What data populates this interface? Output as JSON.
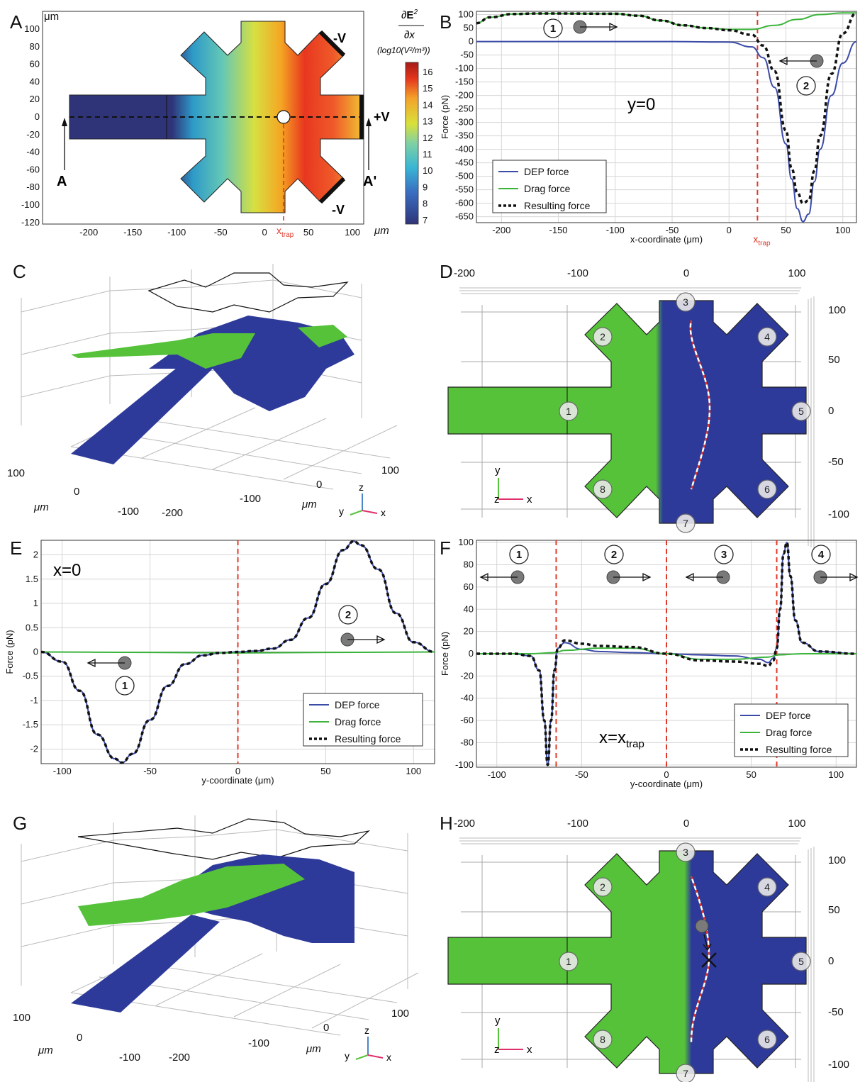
{
  "panel_letters": [
    "A",
    "B",
    "C",
    "D",
    "E",
    "F",
    "G",
    "H"
  ],
  "colors": {
    "dep": "#3b4ba8",
    "drag": "#3cb43c",
    "result": "#111111",
    "trap": "#e03a2a",
    "green_surface": "#56c23a",
    "blue_surface": "#2e3a9a"
  },
  "panelA": {
    "y_unit": "μm",
    "x_unit": "μm",
    "x_ticks": [
      "-200",
      "-150",
      "-100",
      "-50",
      "0",
      "50",
      "100"
    ],
    "y_ticks": [
      "100",
      "80",
      "60",
      "40",
      "20",
      "0",
      "-20",
      "-40",
      "-60",
      "-80",
      "-100",
      "-120"
    ],
    "label_A": "A",
    "label_A2": "A'",
    "electrode_top": "-V",
    "electrode_right": "+V",
    "electrode_bottom": "-V",
    "xtrap": "x",
    "xtrap_sub": "trap",
    "colorbar_title_unit": "(log10(V²/m³))",
    "colorbar_ticks": [
      "16",
      "15",
      "14",
      "13",
      "12",
      "11",
      "10",
      "9",
      "8",
      "7"
    ]
  },
  "chart_data": [
    {
      "panel": "B",
      "type": "line",
      "xlabel": "x-coordinate (μm)",
      "ylabel": "Force (pN)",
      "xlim": [
        -222,
        112
      ],
      "ylim": [
        -672,
        112
      ],
      "x_ticks": [
        "-200",
        "-150",
        "-100",
        "-50",
        "0",
        "50",
        "100"
      ],
      "y_ticks": [
        "100",
        "50",
        "0",
        "-50",
        "-100",
        "-150",
        "-200",
        "-250",
        "-300",
        "-350",
        "-400",
        "-450",
        "-500",
        "-550",
        "-600",
        "-650"
      ],
      "annotation": "y=0",
      "xtrap": "x",
      "xtrap_sub": "trap",
      "trap_x": 25,
      "legend": [
        "DEP force",
        "Drag force",
        "Resulting force"
      ],
      "series": [
        {
          "name": "DEP force",
          "x": [
            -222,
            -150,
            -50,
            0,
            20,
            30,
            40,
            50,
            55,
            60,
            65,
            70,
            75,
            80,
            90,
            100,
            112
          ],
          "y": [
            0,
            0,
            0,
            -2,
            -20,
            -60,
            -170,
            -380,
            -510,
            -620,
            -668,
            -640,
            -520,
            -400,
            -200,
            -80,
            0
          ]
        },
        {
          "name": "Drag force",
          "x": [
            -222,
            -210,
            -190,
            -170,
            -150,
            -100,
            -80,
            -60,
            -40,
            -20,
            0,
            20,
            40,
            60,
            80,
            100,
            112
          ],
          "y": [
            68,
            90,
            102,
            104,
            104,
            103,
            96,
            78,
            60,
            50,
            45,
            45,
            60,
            82,
            100,
            106,
            106
          ]
        },
        {
          "name": "Resulting force",
          "x": [
            -222,
            -210,
            -190,
            -170,
            -150,
            -100,
            -80,
            -60,
            -40,
            -20,
            0,
            20,
            30,
            40,
            50,
            55,
            60,
            65,
            70,
            75,
            80,
            90,
            100,
            112
          ],
          "y": [
            68,
            90,
            102,
            104,
            104,
            103,
            96,
            78,
            60,
            50,
            42,
            25,
            -15,
            -110,
            -330,
            -470,
            -560,
            -600,
            -590,
            -480,
            -350,
            -120,
            30,
            106
          ]
        }
      ]
    },
    {
      "panel": "E",
      "type": "line",
      "xlabel": "y-coordinate (μm)",
      "ylabel": "Force (pN)",
      "xlim": [
        -112,
        112
      ],
      "ylim": [
        -2.3,
        2.3
      ],
      "x_ticks": [
        "-100",
        "-50",
        "0",
        "50",
        "100"
      ],
      "y_ticks": [
        "2",
        "1.5",
        "1",
        "0.5",
        "0",
        "-0.5",
        "-1",
        "-1.5",
        "-2"
      ],
      "annotation": "x=0",
      "trap_x": 0,
      "legend": [
        "DEP force",
        "Drag force",
        "Resulting force"
      ],
      "series": [
        {
          "name": "DEP force",
          "x": [
            -112,
            -100,
            -90,
            -80,
            -70,
            -66,
            -60,
            -50,
            -40,
            -30,
            -20,
            -10,
            0,
            10,
            20,
            30,
            40,
            50,
            60,
            66,
            70,
            80,
            90,
            100,
            112
          ],
          "y": [
            0,
            -0.2,
            -0.8,
            -1.7,
            -2.2,
            -2.28,
            -2.1,
            -1.4,
            -0.7,
            -0.25,
            -0.07,
            -0.02,
            0,
            0.02,
            0.07,
            0.25,
            0.7,
            1.4,
            2.1,
            2.28,
            2.2,
            1.7,
            0.8,
            0.2,
            0
          ]
        },
        {
          "name": "Drag force",
          "x": [
            -112,
            -50,
            0,
            50,
            112
          ],
          "y": [
            0,
            -0.01,
            -0.02,
            -0.01,
            0
          ]
        },
        {
          "name": "Resulting force",
          "x": [
            -112,
            -100,
            -90,
            -80,
            -70,
            -66,
            -60,
            -50,
            -40,
            -30,
            -20,
            -10,
            0,
            10,
            20,
            30,
            40,
            50,
            60,
            66,
            70,
            80,
            90,
            100,
            112
          ],
          "y": [
            0,
            -0.2,
            -0.8,
            -1.7,
            -2.2,
            -2.28,
            -2.1,
            -1.4,
            -0.7,
            -0.25,
            -0.07,
            -0.02,
            0,
            0.02,
            0.07,
            0.25,
            0.7,
            1.4,
            2.1,
            2.28,
            2.2,
            1.7,
            0.8,
            0.2,
            0
          ]
        }
      ]
    },
    {
      "panel": "F",
      "type": "line",
      "xlabel": "y-coordinate (μm)",
      "ylabel": "Force (pN)",
      "xlim": [
        -112,
        112
      ],
      "ylim": [
        -102,
        102
      ],
      "x_ticks": [
        "-100",
        "-50",
        "0",
        "50",
        "100"
      ],
      "y_ticks": [
        "100",
        "80",
        "60",
        "40",
        "20",
        "0",
        "-20",
        "-40",
        "-60",
        "-80",
        "-100"
      ],
      "annotation": "x=x",
      "annotation_sub": "trap",
      "trap_lines": [
        -65,
        0,
        65
      ],
      "legend": [
        "DEP force",
        "Drag force",
        "Resulting force"
      ],
      "series": [
        {
          "name": "DEP force",
          "x": [
            -112,
            -90,
            -80,
            -75,
            -72,
            -70,
            -68,
            -66,
            -64,
            -60,
            -50,
            -40,
            -20,
            0,
            20,
            40,
            55,
            60,
            63,
            65,
            67,
            69,
            71,
            73,
            76,
            80,
            90,
            112
          ],
          "y": [
            0,
            0,
            -2,
            -15,
            -60,
            -100,
            -60,
            -15,
            5,
            10,
            4,
            2,
            1,
            0,
            -1,
            -2,
            -5,
            -8,
            -4,
            5,
            40,
            90,
            100,
            70,
            30,
            10,
            2,
            0
          ]
        },
        {
          "name": "Drag force",
          "x": [
            -112,
            -80,
            -66,
            -60,
            -40,
            -20,
            0,
            20,
            40,
            60,
            66,
            80,
            112
          ],
          "y": [
            0,
            0,
            1,
            3,
            5,
            5,
            0,
            -5,
            -5,
            -3,
            -1,
            0,
            0
          ]
        },
        {
          "name": "Resulting force",
          "x": [
            -112,
            -90,
            -80,
            -75,
            -72,
            -70,
            -68,
            -66,
            -64,
            -60,
            -50,
            -40,
            -20,
            0,
            20,
            40,
            55,
            60,
            63,
            65,
            67,
            69,
            71,
            73,
            76,
            80,
            90,
            112
          ],
          "y": [
            0,
            0,
            -2,
            -15,
            -60,
            -100,
            -60,
            -15,
            5,
            12,
            9,
            7,
            6,
            0,
            -6,
            -7,
            -9,
            -11,
            -6,
            5,
            40,
            90,
            100,
            70,
            30,
            10,
            2,
            0
          ]
        }
      ]
    }
  ],
  "panelB_numbers": [
    "1",
    "2"
  ],
  "panelE_numbers": [
    "2",
    "1"
  ],
  "panelF_numbers": [
    "1",
    "2",
    "3",
    "4"
  ],
  "panelC": {
    "unit": "μm",
    "y_ticks": [
      "100",
      "0",
      "-100"
    ],
    "x_ticks": [
      "100",
      "0",
      "-100",
      "-200"
    ],
    "axes": [
      "z",
      "y",
      "x"
    ]
  },
  "panelD": {
    "top_ticks": [
      "-200",
      "-100",
      "0",
      "100"
    ],
    "right_ticks": [
      "100",
      "50",
      "0",
      "-50",
      "-100"
    ],
    "arms": [
      "1",
      "2",
      "3",
      "4",
      "5",
      "6",
      "7",
      "8"
    ],
    "axes": [
      "y",
      "z",
      "x"
    ]
  },
  "panelG": {
    "unit": "μm",
    "y_ticks": [
      "100",
      "0",
      "-100"
    ],
    "x_ticks": [
      "100",
      "0",
      "-100",
      "-200"
    ],
    "axes": [
      "z",
      "y",
      "x"
    ]
  },
  "panelH": {
    "top_ticks": [
      "-200",
      "-100",
      "0",
      "100"
    ],
    "right_ticks": [
      "100",
      "50",
      "0",
      "-50",
      "-100"
    ],
    "arms": [
      "1",
      "2",
      "3",
      "4",
      "5",
      "6",
      "7",
      "8"
    ],
    "axes": [
      "y",
      "z",
      "x"
    ]
  }
}
